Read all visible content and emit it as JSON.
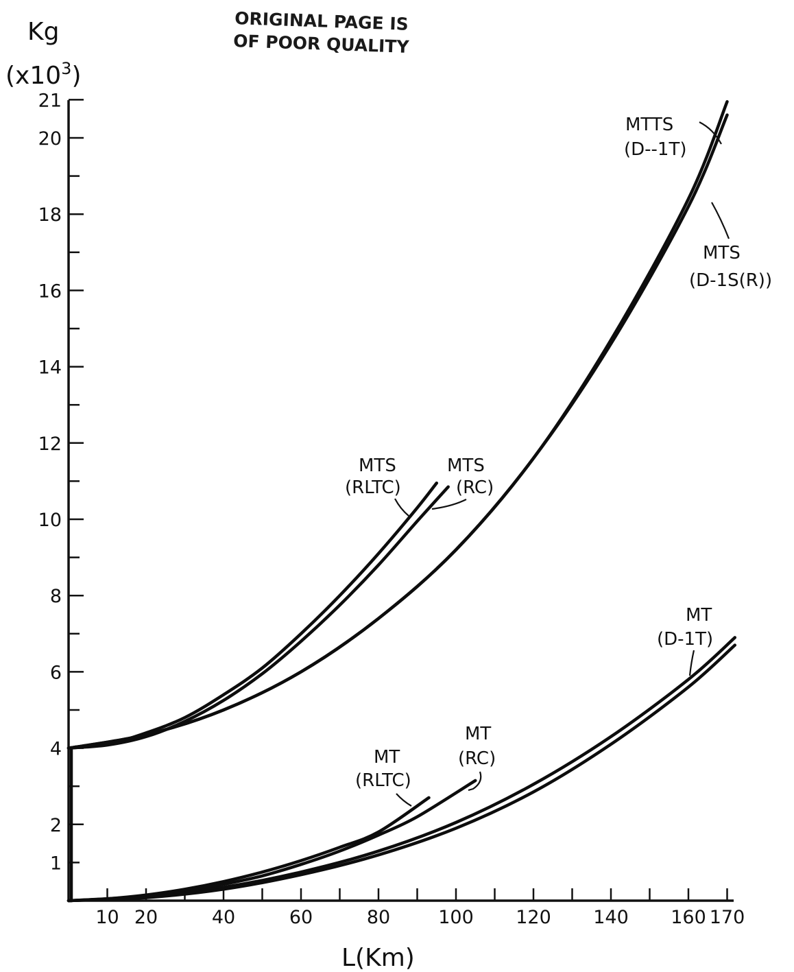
{
  "stamp": [
    "ORIGINAL PAGE IS",
    "OF POOR QUALITY"
  ],
  "chart_data": {
    "type": "line",
    "xlabel": "L(Km)",
    "ylabel": "Kg",
    "ylabel_unit": "(x10",
    "ylabel_exp": "3",
    "ylabel_close": ")",
    "xlim": [
      0,
      172
    ],
    "ylim": [
      0,
      21
    ],
    "x_ticks": [
      10,
      20,
      40,
      60,
      80,
      100,
      120,
      140,
      160,
      170
    ],
    "x_tick_labels": [
      "10",
      "20",
      "40",
      "60",
      "80",
      "100",
      "120",
      "140",
      "160",
      "170"
    ],
    "y_ticks": [
      1,
      2,
      4,
      6,
      8,
      10,
      12,
      14,
      16,
      18,
      20,
      21
    ],
    "y_tick_labels": [
      "1",
      "2",
      "4",
      "6",
      "8",
      "10",
      "12",
      "14",
      "16",
      "18",
      "20",
      "21"
    ],
    "grid": false,
    "series": [
      {
        "name": "MTS (RLTC)",
        "label_lines": [
          "MTS",
          "(RLTC)"
        ],
        "x": [
          0,
          10,
          20,
          30,
          40,
          50,
          60,
          70,
          80,
          90,
          95
        ],
        "y": [
          4.0,
          4.1,
          4.4,
          4.8,
          5.4,
          6.1,
          7.0,
          8.0,
          9.1,
          10.3,
          10.95
        ]
      },
      {
        "name": "MTS (RC)",
        "label_lines": [
          "MTS",
          "(RC)"
        ],
        "x": [
          0,
          10,
          20,
          30,
          40,
          50,
          60,
          70,
          80,
          90,
          98
        ],
        "y": [
          4.0,
          4.08,
          4.3,
          4.7,
          5.25,
          5.95,
          6.8,
          7.75,
          8.8,
          9.95,
          10.85
        ]
      },
      {
        "name": "MTS (D-1S(R))",
        "label_lines": [
          "MTS",
          "(D-1S(R))"
        ],
        "x": [
          0,
          20,
          40,
          60,
          80,
          100,
          120,
          140,
          160,
          170
        ],
        "y": [
          4.0,
          4.35,
          5.0,
          6.0,
          7.4,
          9.2,
          11.6,
          14.6,
          18.2,
          20.6
        ]
      },
      {
        "name": "MTTS (D--1T)",
        "label_lines": [
          "MTTS",
          "(D--1T)"
        ],
        "x": [
          0,
          20,
          40,
          60,
          80,
          100,
          120,
          140,
          160,
          170
        ],
        "y": [
          4.0,
          4.35,
          5.0,
          6.0,
          7.4,
          9.2,
          11.6,
          14.7,
          18.4,
          20.95
        ]
      },
      {
        "name": "MT (RLTC)",
        "label_lines": [
          "MT",
          "(RLTC)"
        ],
        "x": [
          0,
          10,
          20,
          30,
          40,
          50,
          60,
          70,
          80,
          93
        ],
        "y": [
          0.0,
          0.05,
          0.15,
          0.3,
          0.5,
          0.75,
          1.05,
          1.4,
          1.8,
          2.7
        ]
      },
      {
        "name": "MT (RC)",
        "label_lines": [
          "MT",
          "(RC)"
        ],
        "x": [
          0,
          10,
          20,
          30,
          40,
          50,
          60,
          70,
          80,
          90,
          105
        ],
        "y": [
          0.0,
          0.05,
          0.12,
          0.25,
          0.43,
          0.65,
          0.95,
          1.3,
          1.72,
          2.2,
          3.15
        ]
      },
      {
        "name": "MT (D-1T)",
        "label_lines": [
          "MT",
          "(D-1T)"
        ],
        "x": [
          0,
          20,
          40,
          60,
          80,
          100,
          120,
          140,
          160,
          172
        ],
        "y": [
          0.0,
          0.1,
          0.35,
          0.75,
          1.3,
          2.05,
          3.05,
          4.3,
          5.8,
          6.9
        ]
      },
      {
        "name": "MT (D-1T) lower",
        "label_lines": [],
        "x": [
          0,
          20,
          40,
          60,
          80,
          100,
          120,
          140,
          160,
          172
        ],
        "y": [
          0.0,
          0.08,
          0.3,
          0.68,
          1.2,
          1.9,
          2.85,
          4.1,
          5.6,
          6.7
        ]
      }
    ]
  }
}
